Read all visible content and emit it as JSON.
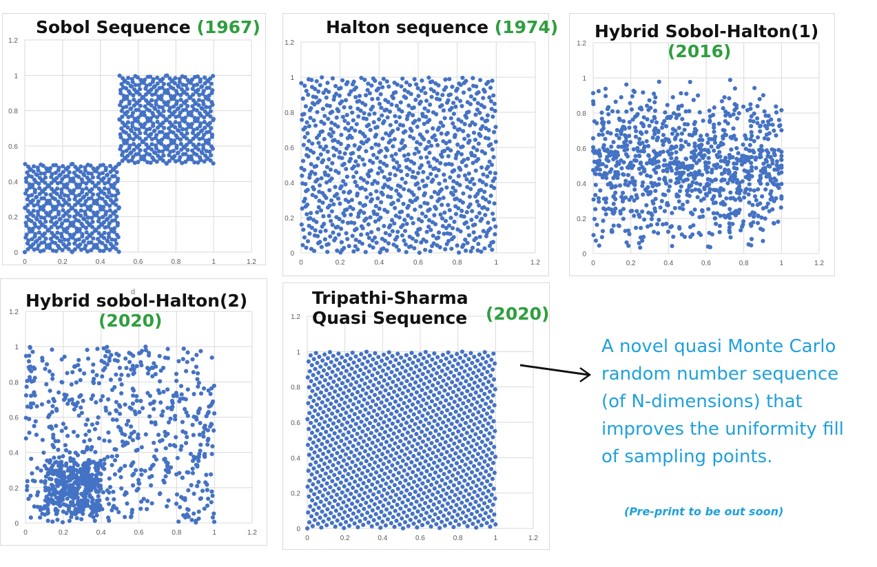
{
  "chart_data": [
    {
      "type": "scatter",
      "title": "Sobol Sequence",
      "title_year": "(1967)",
      "xlim": [
        0,
        1.2
      ],
      "ylim": [
        0,
        1.2
      ],
      "x_ticks": [
        "0",
        "0.2",
        "0.4",
        "0.6",
        "0.8",
        "1",
        "1.2"
      ],
      "y_ticks": [
        "0",
        "0.2",
        "0.4",
        "0.6",
        "0.8",
        "1",
        "1.2"
      ],
      "grid": true,
      "point_color": "#4472c4",
      "generator": "sobol",
      "n_points": 1024,
      "x_range": [
        0,
        1
      ],
      "y_range": [
        0,
        1
      ]
    },
    {
      "type": "scatter",
      "title": "Halton sequence",
      "title_year": "(1974)",
      "xlim": [
        0,
        1.2
      ],
      "ylim": [
        0,
        1.2
      ],
      "x_ticks": [
        "0",
        "0.2",
        "0.4",
        "0.6",
        "0.8",
        "1",
        "1.2"
      ],
      "y_ticks": [
        "0",
        "0.2",
        "0.4",
        "0.6",
        "0.8",
        "1",
        "1.2"
      ],
      "grid": true,
      "point_color": "#4472c4",
      "generator": "halton",
      "n_points": 1000,
      "x_range": [
        0,
        1
      ],
      "y_range": [
        0,
        1
      ]
    },
    {
      "type": "scatter",
      "title": "Hybrid Sobol-Halton(1)",
      "title_year": "(2016)",
      "xlim": [
        0,
        1.2
      ],
      "ylim": [
        0,
        1.2
      ],
      "x_ticks": [
        "0",
        "0.2",
        "0.4",
        "0.6",
        "0.8",
        "1",
        "1.2"
      ],
      "y_ticks": [
        "0",
        "0.2",
        "0.4",
        "0.6",
        "0.8",
        "1",
        "1.2"
      ],
      "grid": true,
      "point_color": "#4472c4",
      "generator": "hybrid1",
      "n_points": 1000,
      "x_range": [
        0,
        1
      ],
      "y_range": [
        0,
        1
      ]
    },
    {
      "type": "scatter",
      "title": "Hybrid sobol-Halton(2)",
      "title_year": "(2020)",
      "xlim": [
        0,
        1.2
      ],
      "ylim": [
        0,
        1.2
      ],
      "x_ticks": [
        "0",
        "0.2",
        "0.4",
        "0.6",
        "0.8",
        "1",
        "1.2"
      ],
      "y_ticks": [
        "0",
        "0.2",
        "0.4",
        "0.6",
        "0.8",
        "1",
        "1.2"
      ],
      "grid": true,
      "point_color": "#4472c4",
      "generator": "hybrid2",
      "n_points": 1000,
      "x_range": [
        0,
        1
      ],
      "y_range": [
        0,
        1
      ]
    },
    {
      "type": "scatter",
      "title": "Tripathi-Sharma\nQuasi Sequence",
      "title_year": "(2020)",
      "xlim": [
        0,
        1.2
      ],
      "ylim": [
        0,
        1.2
      ],
      "x_ticks": [
        "0",
        "0.2",
        "0.4",
        "0.6",
        "0.8",
        "1",
        "1.2"
      ],
      "y_ticks": [
        "0",
        "0.2",
        "0.4",
        "0.6",
        "0.8",
        "1",
        "1.2"
      ],
      "grid": true,
      "point_color": "#4472c4",
      "generator": "lattice",
      "n_points": 1200,
      "x_range": [
        0,
        1
      ],
      "y_range": [
        0,
        1
      ]
    }
  ],
  "description": "A novel quasi Monte Carlo random number sequence (of N-dimensions) that improves the uniformity fill of sampling points.",
  "note": "(Pre-print to be out soon)",
  "stray_mark": "d",
  "colors": {
    "title_year": "#2e9e3e",
    "description": "#1fa0dc",
    "point": "#4472c4",
    "grid": "#d9d9d9"
  },
  "arrow_icon": "right-arrow-icon"
}
